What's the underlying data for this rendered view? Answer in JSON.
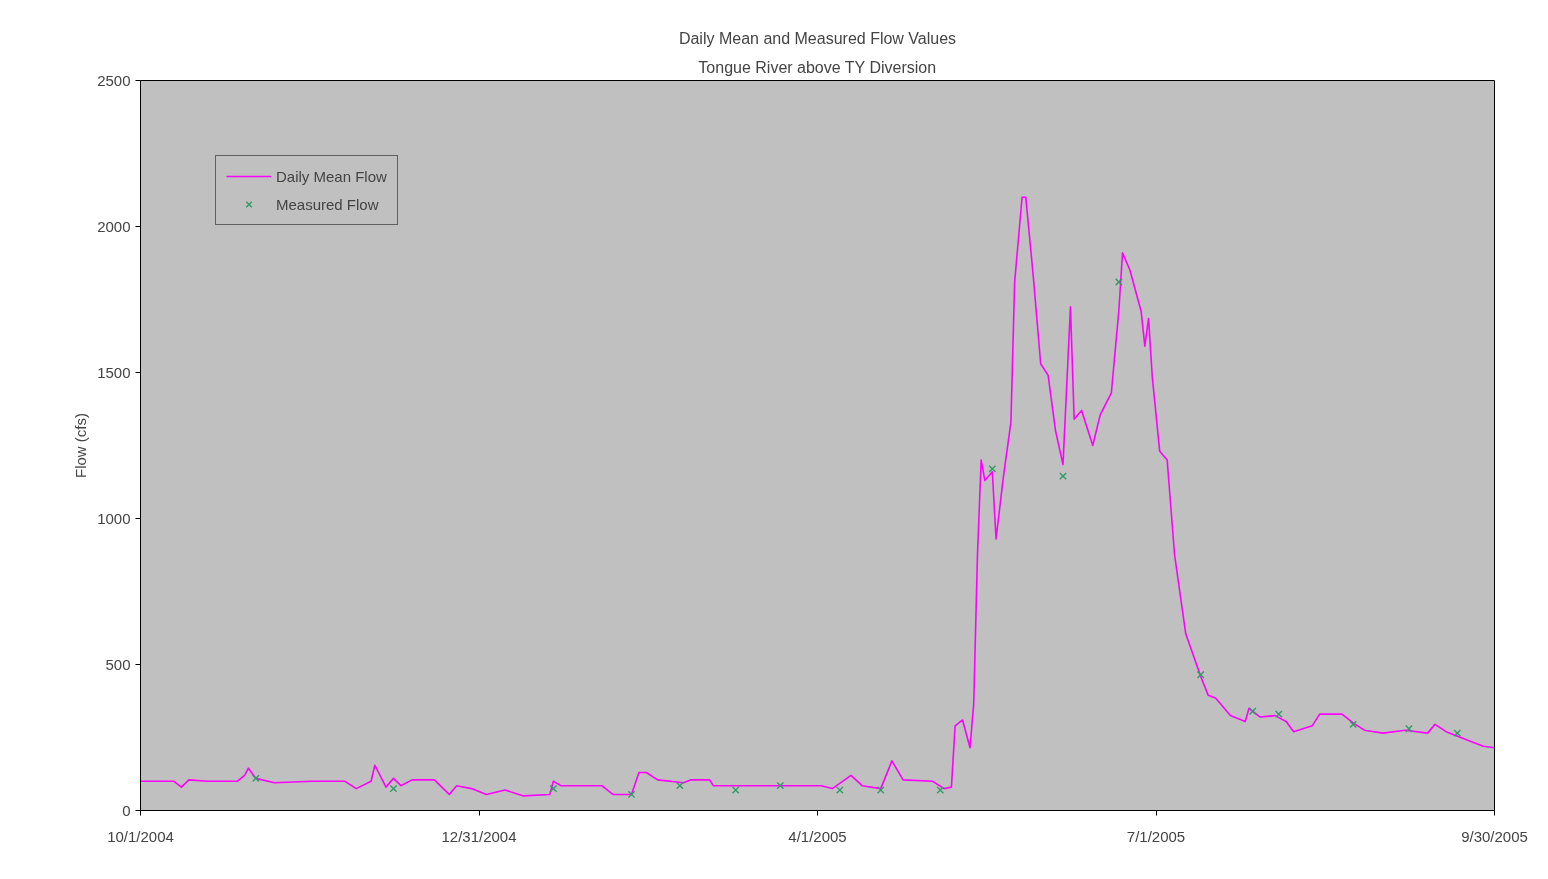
{
  "chart_data": {
    "type": "line",
    "title": "Daily Mean and Measured Flow Values",
    "subtitle": "Tongue River above TY Diversion",
    "ylabel": "Flow (cfs)",
    "xlim": [
      "2004-10-01",
      "2005-09-30"
    ],
    "xticks": [
      {
        "value": "2004-10-01",
        "label": "10/1/2004"
      },
      {
        "value": "2004-12-31",
        "label": "12/31/2004"
      },
      {
        "value": "2005-04-01",
        "label": "4/1/2005"
      },
      {
        "value": "2005-07-01",
        "label": "7/1/2005"
      },
      {
        "value": "2005-09-30",
        "label": "9/30/2005"
      }
    ],
    "ylim": [
      0,
      2500
    ],
    "yticks": [
      0,
      500,
      1000,
      1500,
      2000,
      2500
    ],
    "grid": false,
    "legend": "top left",
    "series": [
      {
        "name": "Daily Mean Flow",
        "color": "#ff00ff",
        "marker": "none",
        "line_style": "solid",
        "x": [
          "2004-10-01",
          "2004-10-10",
          "2004-10-12",
          "2004-10-14",
          "2004-10-19",
          "2004-10-27",
          "2004-10-29",
          "2004-10-30",
          "2004-11-01",
          "2004-11-06",
          "2004-11-16",
          "2004-11-25",
          "2004-11-28",
          "2004-12-02",
          "2004-12-03",
          "2004-12-06",
          "2004-12-08",
          "2004-12-10",
          "2004-12-13",
          "2004-12-19",
          "2004-12-23",
          "2004-12-25",
          "2004-12-29",
          "2005-01-02",
          "2005-01-07",
          "2005-01-12",
          "2005-01-19",
          "2005-01-20",
          "2005-01-22",
          "2005-02-02",
          "2005-02-05",
          "2005-02-10",
          "2005-02-12",
          "2005-02-14",
          "2005-02-17",
          "2005-02-24",
          "2005-02-26",
          "2005-03-03",
          "2005-03-04",
          "2005-03-23",
          "2005-04-02",
          "2005-04-05",
          "2005-04-10",
          "2005-04-13",
          "2005-04-18",
          "2005-04-21",
          "2005-04-24",
          "2005-05-02",
          "2005-05-05",
          "2005-05-07",
          "2005-05-08",
          "2005-05-10",
          "2005-05-12",
          "2005-05-13",
          "2005-05-14",
          "2005-05-15",
          "2005-05-16",
          "2005-05-18",
          "2005-05-19",
          "2005-05-21",
          "2005-05-23",
          "2005-05-24",
          "2005-05-26",
          "2005-05-27",
          "2005-05-29",
          "2005-05-31",
          "2005-06-02",
          "2005-06-04",
          "2005-06-06",
          "2005-06-07",
          "2005-06-08",
          "2005-06-09",
          "2005-06-11",
          "2005-06-14",
          "2005-06-16",
          "2005-06-19",
          "2005-06-21",
          "2005-06-22",
          "2005-06-24",
          "2005-06-27",
          "2005-06-28",
          "2005-06-29",
          "2005-06-30",
          "2005-07-02",
          "2005-07-04",
          "2005-07-06",
          "2005-07-09",
          "2005-07-13",
          "2005-07-15",
          "2005-07-17",
          "2005-07-21",
          "2005-07-25",
          "2005-07-26",
          "2005-07-29",
          "2005-08-02",
          "2005-08-05",
          "2005-08-07",
          "2005-08-12",
          "2005-08-14",
          "2005-08-20",
          "2005-08-23",
          "2005-08-26",
          "2005-08-31",
          "2005-09-06",
          "2005-09-12",
          "2005-09-14",
          "2005-09-17",
          "2005-09-23",
          "2005-09-27",
          "2005-09-30"
        ],
        "values": [
          100,
          100,
          80,
          105,
          100,
          100,
          120,
          145,
          110,
          95,
          100,
          100,
          75,
          100,
          155,
          80,
          110,
          85,
          105,
          105,
          55,
          85,
          75,
          55,
          70,
          50,
          55,
          100,
          85,
          85,
          55,
          55,
          130,
          130,
          105,
          95,
          105,
          105,
          85,
          85,
          85,
          75,
          120,
          85,
          75,
          170,
          105,
          100,
          75,
          80,
          290,
          310,
          215,
          365,
          875,
          1200,
          1130,
          1160,
          930,
          1145,
          1330,
          1810,
          2100,
          2100,
          1830,
          1530,
          1490,
          1300,
          1185,
          1455,
          1725,
          1340,
          1370,
          1250,
          1355,
          1430,
          1710,
          1910,
          1850,
          1710,
          1590,
          1685,
          1485,
          1230,
          1200,
          875,
          605,
          460,
          395,
          385,
          325,
          305,
          350,
          320,
          325,
          305,
          270,
          290,
          330,
          330,
          300,
          275,
          265,
          275,
          265,
          295,
          270,
          240,
          220,
          215
        ]
      },
      {
        "name": "Measured Flow",
        "type": "scatter",
        "color": "#339966",
        "marker": "cross",
        "x": [
          "2004-11-01",
          "2004-12-08",
          "2005-01-20",
          "2005-02-10",
          "2005-02-23",
          "2005-03-10",
          "2005-03-22",
          "2005-04-07",
          "2005-04-18",
          "2005-05-04",
          "2005-05-18",
          "2005-06-06",
          "2005-06-21",
          "2005-07-13",
          "2005-07-27",
          "2005-08-03",
          "2005-08-23",
          "2005-09-07",
          "2005-09-20"
        ],
        "values": [
          110,
          75,
          75,
          55,
          85,
          70,
          85,
          70,
          70,
          70,
          1170,
          1145,
          1810,
          465,
          340,
          330,
          295,
          280,
          265
        ]
      }
    ]
  }
}
